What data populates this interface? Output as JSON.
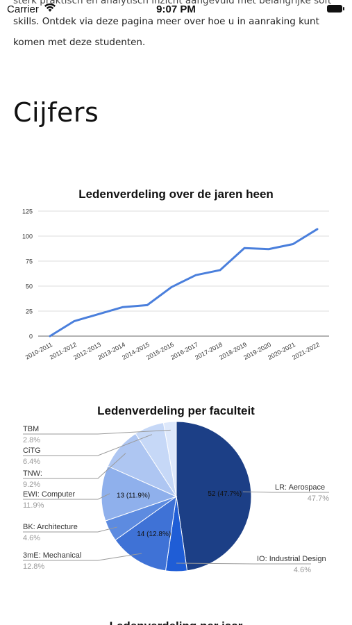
{
  "status_bar": {
    "carrier": "Carrier",
    "time": "9:07 PM"
  },
  "intro": {
    "line1": "sterk praktisch en analytisch inzicht aangevuld met belangrijke soft",
    "line2": "skills. Ontdek via deze pagina meer over hoe u in aanraking kunt",
    "line3": "komen met deze studenten."
  },
  "section": {
    "title": "Cijfers"
  },
  "chart_data": [
    {
      "type": "line",
      "title": "Ledenverdeling over de jaren heen",
      "categories": [
        "2010-2011",
        "2011-2012",
        "2012-2013",
        "2013-2014",
        "2014-2015",
        "2015-2016",
        "2016-2017",
        "2017-2018",
        "2018-2019",
        "2019-2020",
        "2020-2021",
        "2021-2022"
      ],
      "series": [
        {
          "values": [
            0,
            15,
            22,
            29,
            31,
            49,
            61,
            66,
            88,
            87,
            92,
            107
          ]
        }
      ],
      "ylim": [
        0,
        125
      ],
      "yticks": [
        0,
        25,
        50,
        75,
        100,
        125
      ],
      "grid": true,
      "color": "#4a7fdc"
    },
    {
      "type": "pie",
      "title": "Ledenverdeling per faculteit",
      "slices": [
        {
          "label": "LR: Aerospace",
          "value": 52,
          "pct": "47.7%",
          "inner": "52 (47.7%)",
          "color": "#1c3f86"
        },
        {
          "label": "IO: Industrial Design",
          "value": 5,
          "pct": "4.6%",
          "inner": "",
          "color": "#1f5dd6"
        },
        {
          "label": "3mE: Mechanical",
          "value": 14,
          "pct": "12.8%",
          "inner": "14 (12.8%)",
          "color": "#3f72d6"
        },
        {
          "label": "BK: Architecture",
          "value": 5,
          "pct": "4.6%",
          "inner": "",
          "color": "#5d8be0"
        },
        {
          "label": "EWI: Computer",
          "value": 13,
          "pct": "11.9%",
          "inner": "13 (11.9%)",
          "color": "#8fb0ec"
        },
        {
          "label": "TNW:",
          "value": 10,
          "pct": "9.2%",
          "inner": "",
          "color": "#aec6f2"
        },
        {
          "label": "CiTG",
          "value": 7,
          "pct": "6.4%",
          "inner": "",
          "color": "#c6d8f7"
        },
        {
          "label": "TBM",
          "value": 3,
          "pct": "2.8%",
          "inner": "",
          "color": "#dde8fb"
        }
      ]
    }
  ],
  "next_chart": {
    "title": "Ledenverdeling per jaar"
  }
}
